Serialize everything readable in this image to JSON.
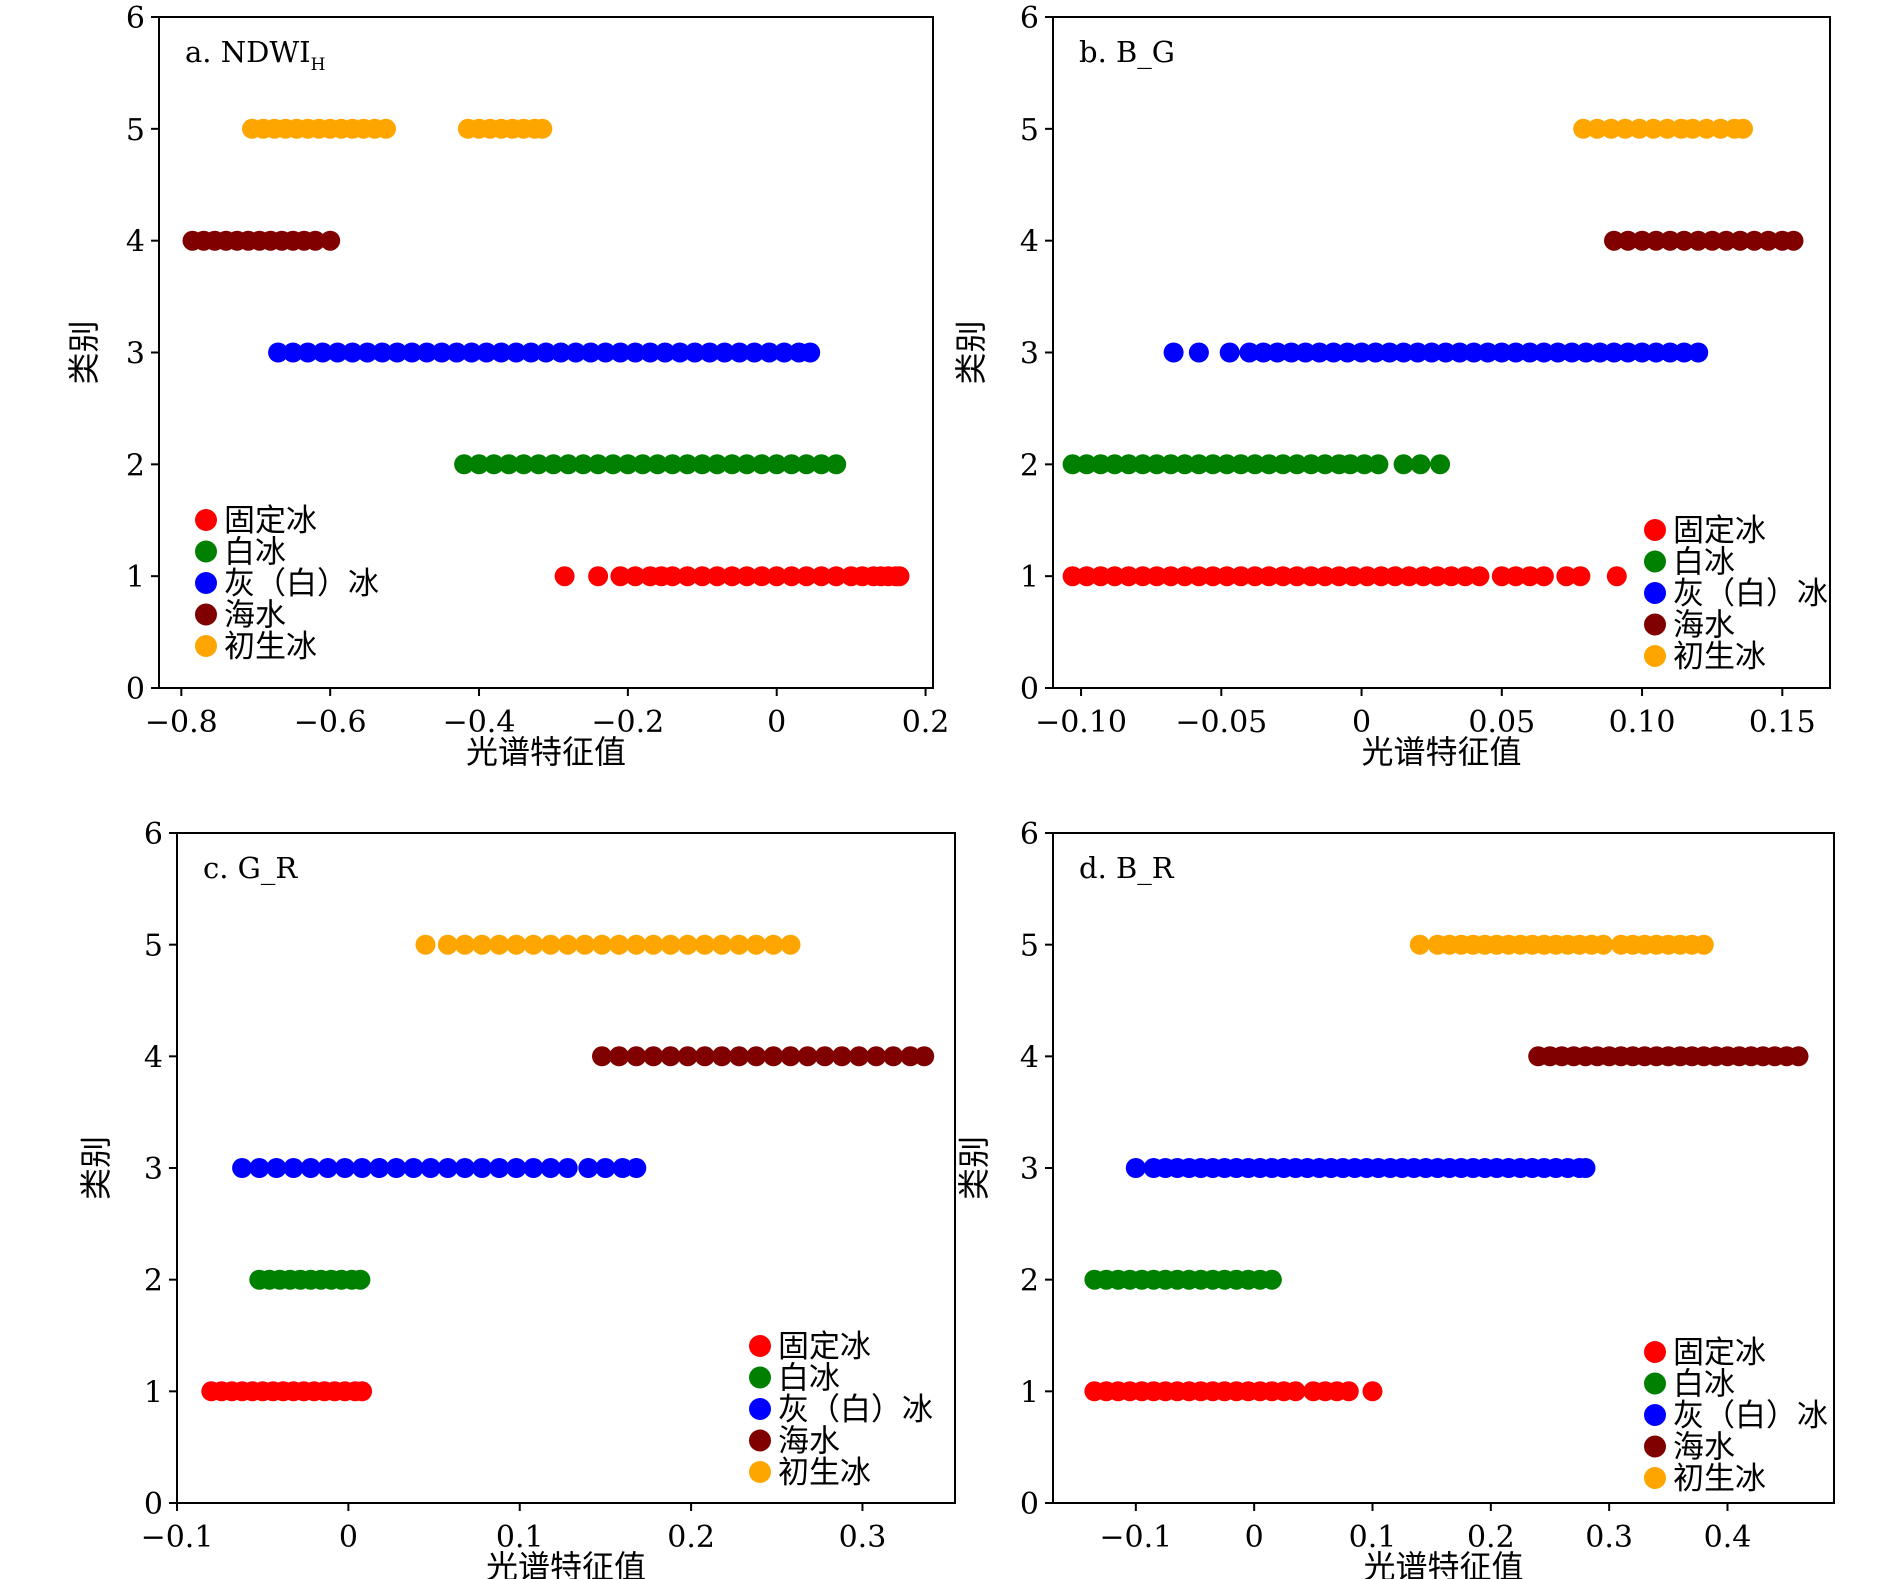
{
  "chart_data": [
    {
      "type": "scatter",
      "panel_label": "a. NDWI",
      "panel_label_sub": "H",
      "xlabel": "光谱特征值",
      "ylabel": "类别",
      "xlim": [
        -0.83,
        0.21
      ],
      "ylim": [
        0,
        6
      ],
      "xticks": [
        -0.8,
        -0.6,
        -0.4,
        -0.2,
        0,
        0.2
      ],
      "xtick_labels": [
        "−0.8",
        "−0.6",
        "−0.4",
        "−0.2",
        "0",
        "0.2"
      ],
      "yticks": [
        0,
        1,
        2,
        3,
        4,
        5,
        6
      ],
      "ytick_labels": [
        "0",
        "1",
        "2",
        "3",
        "4",
        "5",
        "6"
      ],
      "legend_position": "lower-left",
      "series": [
        {
          "name": "固定冰",
          "y": 1,
          "color": "#ff0000",
          "x": [
            -0.285,
            -0.24,
            -0.21,
            -0.19,
            -0.17,
            -0.155,
            -0.14,
            -0.12,
            -0.1,
            -0.08,
            -0.06,
            -0.04,
            -0.02,
            0.0,
            0.02,
            0.04,
            0.06,
            0.08,
            0.1,
            0.115,
            0.13,
            0.14,
            0.15,
            0.16,
            0.165
          ]
        },
        {
          "name": "白冰",
          "y": 2,
          "color": "#008000",
          "x": [
            -0.42,
            -0.4,
            -0.38,
            -0.36,
            -0.34,
            -0.32,
            -0.3,
            -0.28,
            -0.26,
            -0.24,
            -0.22,
            -0.2,
            -0.18,
            -0.16,
            -0.14,
            -0.12,
            -0.1,
            -0.08,
            -0.06,
            -0.04,
            -0.02,
            0.0,
            0.02,
            0.04,
            0.06,
            0.08
          ]
        },
        {
          "name": "灰（白）冰",
          "y": 3,
          "color": "#0000ff",
          "x": [
            -0.67,
            -0.65,
            -0.63,
            -0.61,
            -0.59,
            -0.57,
            -0.55,
            -0.53,
            -0.51,
            -0.49,
            -0.47,
            -0.45,
            -0.43,
            -0.41,
            -0.39,
            -0.37,
            -0.35,
            -0.33,
            -0.31,
            -0.29,
            -0.27,
            -0.25,
            -0.23,
            -0.21,
            -0.19,
            -0.17,
            -0.15,
            -0.13,
            -0.11,
            -0.09,
            -0.07,
            -0.05,
            -0.03,
            -0.01,
            0.01,
            0.03,
            0.045
          ]
        },
        {
          "name": "海水",
          "y": 4,
          "color": "#800000",
          "x": [
            -0.785,
            -0.77,
            -0.755,
            -0.74,
            -0.725,
            -0.71,
            -0.695,
            -0.68,
            -0.665,
            -0.65,
            -0.635,
            -0.62,
            -0.6
          ]
        },
        {
          "name": "初生冰",
          "y": 5,
          "color": "#ffa500",
          "x": [
            -0.705,
            -0.69,
            -0.675,
            -0.66,
            -0.645,
            -0.63,
            -0.615,
            -0.6,
            -0.585,
            -0.57,
            -0.555,
            -0.54,
            -0.525,
            -0.415,
            -0.4,
            -0.385,
            -0.37,
            -0.355,
            -0.34,
            -0.325,
            -0.315
          ]
        }
      ]
    },
    {
      "type": "scatter",
      "panel_label": "b. B_G",
      "panel_label_sub": "",
      "xlabel": "光谱特征值",
      "ylabel": "类别",
      "xlim": [
        -0.11,
        0.167
      ],
      "ylim": [
        0,
        6
      ],
      "xticks": [
        -0.1,
        -0.05,
        0,
        0.05,
        0.1,
        0.15
      ],
      "xtick_labels": [
        "−0.10",
        "−0.05",
        "0",
        "0.05",
        "0.10",
        "0.15"
      ],
      "yticks": [
        0,
        1,
        2,
        3,
        4,
        5,
        6
      ],
      "ytick_labels": [
        "0",
        "1",
        "2",
        "3",
        "4",
        "5",
        "6"
      ],
      "legend_position": "lower-right",
      "series": [
        {
          "name": "固定冰",
          "y": 1,
          "color": "#ff0000",
          "x": [
            -0.103,
            -0.098,
            -0.093,
            -0.088,
            -0.083,
            -0.078,
            -0.073,
            -0.068,
            -0.063,
            -0.058,
            -0.053,
            -0.048,
            -0.043,
            -0.038,
            -0.033,
            -0.028,
            -0.023,
            -0.018,
            -0.013,
            -0.008,
            -0.003,
            0.002,
            0.007,
            0.012,
            0.017,
            0.022,
            0.027,
            0.032,
            0.037,
            0.042,
            0.05,
            0.055,
            0.06,
            0.065,
            0.073,
            0.078,
            0.091
          ]
        },
        {
          "name": "白冰",
          "y": 2,
          "color": "#008000",
          "x": [
            -0.103,
            -0.098,
            -0.093,
            -0.088,
            -0.083,
            -0.078,
            -0.073,
            -0.068,
            -0.063,
            -0.058,
            -0.053,
            -0.048,
            -0.043,
            -0.038,
            -0.033,
            -0.028,
            -0.023,
            -0.018,
            -0.013,
            -0.008,
            -0.004,
            0.001,
            0.006,
            0.015,
            0.021,
            0.028
          ]
        },
        {
          "name": "灰（白）冰",
          "y": 3,
          "color": "#0000ff",
          "x": [
            -0.067,
            -0.058,
            -0.047,
            -0.04,
            -0.035,
            -0.03,
            -0.025,
            -0.02,
            -0.015,
            -0.01,
            -0.005,
            0.0,
            0.005,
            0.01,
            0.015,
            0.02,
            0.025,
            0.03,
            0.035,
            0.04,
            0.045,
            0.05,
            0.055,
            0.06,
            0.065,
            0.07,
            0.075,
            0.08,
            0.085,
            0.09,
            0.095,
            0.1,
            0.105,
            0.11,
            0.115,
            0.12
          ]
        },
        {
          "name": "海水",
          "y": 4,
          "color": "#800000",
          "x": [
            0.09,
            0.095,
            0.1,
            0.105,
            0.11,
            0.115,
            0.12,
            0.125,
            0.13,
            0.135,
            0.14,
            0.145,
            0.15,
            0.154
          ]
        },
        {
          "name": "初生冰",
          "y": 5,
          "color": "#ffa500",
          "x": [
            0.079,
            0.084,
            0.089,
            0.094,
            0.099,
            0.104,
            0.109,
            0.114,
            0.118,
            0.123,
            0.128,
            0.133,
            0.136
          ]
        }
      ]
    },
    {
      "type": "scatter",
      "panel_label": "c. G_R",
      "panel_label_sub": "",
      "xlabel": "光谱特征值",
      "ylabel": "类别",
      "xlim": [
        -0.1,
        0.354
      ],
      "ylim": [
        0,
        6
      ],
      "xticks": [
        -0.1,
        0,
        0.1,
        0.2,
        0.3
      ],
      "xtick_labels": [
        "−0.1",
        "0",
        "0.1",
        "0.2",
        "0.3"
      ],
      "yticks": [
        0,
        1,
        2,
        3,
        4,
        5,
        6
      ],
      "ytick_labels": [
        "0",
        "1",
        "2",
        "3",
        "4",
        "5",
        "6"
      ],
      "legend_position": "lower-right",
      "series": [
        {
          "name": "固定冰",
          "y": 1,
          "color": "#ff0000",
          "x": [
            -0.08,
            -0.074,
            -0.068,
            -0.062,
            -0.056,
            -0.05,
            -0.044,
            -0.038,
            -0.032,
            -0.026,
            -0.02,
            -0.014,
            -0.008,
            -0.002,
            0.004,
            0.008
          ]
        },
        {
          "name": "白冰",
          "y": 2,
          "color": "#008000",
          "x": [
            -0.052,
            -0.046,
            -0.04,
            -0.034,
            -0.028,
            -0.022,
            -0.016,
            -0.01,
            -0.004,
            0.002,
            0.007
          ]
        },
        {
          "name": "灰（白）冰",
          "y": 3,
          "color": "#0000ff",
          "x": [
            -0.062,
            -0.052,
            -0.042,
            -0.032,
            -0.022,
            -0.012,
            -0.002,
            0.008,
            0.018,
            0.028,
            0.038,
            0.048,
            0.058,
            0.068,
            0.078,
            0.088,
            0.098,
            0.108,
            0.118,
            0.128,
            0.14,
            0.15,
            0.16,
            0.168
          ]
        },
        {
          "name": "海水",
          "y": 4,
          "color": "#800000",
          "x": [
            0.148,
            0.158,
            0.168,
            0.178,
            0.188,
            0.198,
            0.208,
            0.218,
            0.228,
            0.238,
            0.248,
            0.258,
            0.268,
            0.278,
            0.288,
            0.298,
            0.308,
            0.318,
            0.328,
            0.336
          ]
        },
        {
          "name": "初生冰",
          "y": 5,
          "color": "#ffa500",
          "x": [
            0.045,
            0.058,
            0.068,
            0.078,
            0.088,
            0.098,
            0.108,
            0.118,
            0.128,
            0.138,
            0.148,
            0.158,
            0.168,
            0.178,
            0.188,
            0.198,
            0.208,
            0.218,
            0.228,
            0.238,
            0.248,
            0.258
          ]
        }
      ]
    },
    {
      "type": "scatter",
      "panel_label": "d. B_R",
      "panel_label_sub": "",
      "xlabel": "光谱特征值",
      "ylabel": "类别",
      "xlim": [
        -0.17,
        0.49
      ],
      "ylim": [
        0,
        6
      ],
      "xticks": [
        -0.1,
        0,
        0.1,
        0.2,
        0.3,
        0.4
      ],
      "xtick_labels": [
        "−0.1",
        "0",
        "0.1",
        "0.2",
        "0.3",
        "0.4"
      ],
      "yticks": [
        0,
        1,
        2,
        3,
        4,
        5,
        6
      ],
      "ytick_labels": [
        "0",
        "1",
        "2",
        "3",
        "4",
        "5",
        "6"
      ],
      "legend_position": "lower-right",
      "series": [
        {
          "name": "固定冰",
          "y": 1,
          "color": "#ff0000",
          "x": [
            -0.135,
            -0.125,
            -0.115,
            -0.105,
            -0.095,
            -0.085,
            -0.075,
            -0.065,
            -0.055,
            -0.045,
            -0.035,
            -0.025,
            -0.015,
            -0.005,
            0.005,
            0.015,
            0.025,
            0.035,
            0.05,
            0.06,
            0.07,
            0.08,
            0.1
          ]
        },
        {
          "name": "白冰",
          "y": 2,
          "color": "#008000",
          "x": [
            -0.135,
            -0.125,
            -0.115,
            -0.105,
            -0.095,
            -0.085,
            -0.075,
            -0.065,
            -0.055,
            -0.045,
            -0.035,
            -0.025,
            -0.015,
            -0.005,
            0.005,
            0.015
          ]
        },
        {
          "name": "灰（白）冰",
          "y": 3,
          "color": "#0000ff",
          "x": [
            -0.1,
            -0.085,
            -0.075,
            -0.065,
            -0.055,
            -0.045,
            -0.035,
            -0.025,
            -0.015,
            -0.005,
            0.005,
            0.015,
            0.025,
            0.035,
            0.045,
            0.055,
            0.065,
            0.075,
            0.085,
            0.095,
            0.105,
            0.115,
            0.125,
            0.135,
            0.145,
            0.155,
            0.165,
            0.175,
            0.185,
            0.195,
            0.205,
            0.215,
            0.225,
            0.235,
            0.245,
            0.255,
            0.265,
            0.275,
            0.28
          ]
        },
        {
          "name": "海水",
          "y": 4,
          "color": "#800000",
          "x": [
            0.24,
            0.25,
            0.26,
            0.27,
            0.28,
            0.29,
            0.3,
            0.31,
            0.32,
            0.33,
            0.34,
            0.35,
            0.36,
            0.37,
            0.38,
            0.39,
            0.4,
            0.41,
            0.42,
            0.43,
            0.44,
            0.45,
            0.46
          ]
        },
        {
          "name": "初生冰",
          "y": 5,
          "color": "#ffa500",
          "x": [
            0.14,
            0.155,
            0.165,
            0.175,
            0.185,
            0.195,
            0.205,
            0.215,
            0.225,
            0.235,
            0.245,
            0.255,
            0.265,
            0.275,
            0.285,
            0.295,
            0.31,
            0.32,
            0.33,
            0.34,
            0.35,
            0.36,
            0.37,
            0.38
          ]
        }
      ]
    }
  ]
}
